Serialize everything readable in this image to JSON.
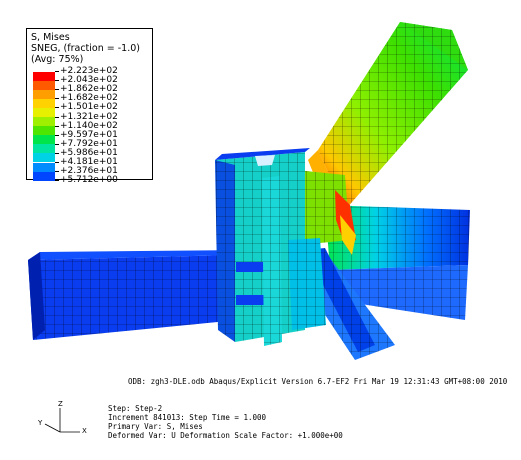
{
  "legend": {
    "title_lines": [
      "S, Mises",
      "SNEG, (fraction = -1.0)",
      "(Avg: 75%)"
    ],
    "entries": [
      {
        "value": "+2.223e+02",
        "color": "#ff0000"
      },
      {
        "value": "+2.043e+02",
        "color": "#ff5a00"
      },
      {
        "value": "+1.862e+02",
        "color": "#ff9e00"
      },
      {
        "value": "+1.682e+02",
        "color": "#ffd200"
      },
      {
        "value": "+1.501e+02",
        "color": "#e6f000"
      },
      {
        "value": "+1.321e+02",
        "color": "#9ef000"
      },
      {
        "value": "+1.140e+02",
        "color": "#4ee600"
      },
      {
        "value": "+9.597e+01",
        "color": "#00e64a"
      },
      {
        "value": "+7.792e+01",
        "color": "#00e6a0"
      },
      {
        "value": "+5.986e+01",
        "color": "#00d2e6"
      },
      {
        "value": "+4.181e+01",
        "color": "#008cff"
      },
      {
        "value": "+2.376e+01",
        "color": "#0046ff"
      },
      {
        "value": "+5.712e+00",
        "color": "#0000c8"
      }
    ]
  },
  "odb_line": "ODB: zgh3-DLE.odb    Abaqus/Explicit Version 6.7-EF2    Fri Mar 19 12:31:43 GMT+08:00 2010",
  "step_info": [
    "Step: Step-2",
    "Increment   841013: Step Time =   1.000",
    "Primary Var: S, Mises",
    "Deformed Var: U   Deformation Scale Factor: +1.000e+00"
  ],
  "triad": {
    "x": "X",
    "y": "Y",
    "z": "Z"
  }
}
